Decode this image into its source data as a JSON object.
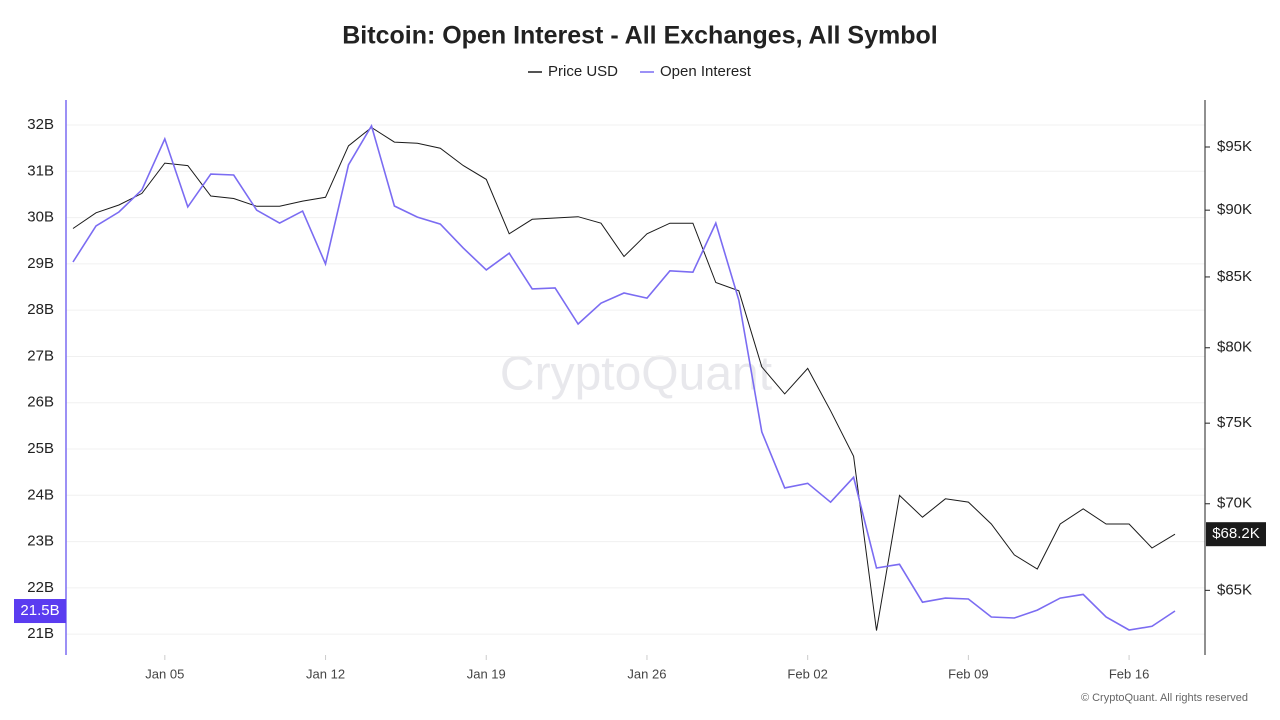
{
  "chart_data": {
    "type": "line",
    "title": "Bitcoin: Open Interest - All Exchanges, All Symbol",
    "watermark": "CryptoQuant",
    "footer": "© CryptoQuant. All rights reserved",
    "categories": [
      "Jan 01",
      "Jan 02",
      "Jan 03",
      "Jan 04",
      "Jan 05",
      "Jan 06",
      "Jan 07",
      "Jan 08",
      "Jan 09",
      "Jan 10",
      "Jan 11",
      "Jan 12",
      "Jan 13",
      "Jan 14",
      "Jan 15",
      "Jan 16",
      "Jan 17",
      "Jan 18",
      "Jan 19",
      "Jan 20",
      "Jan 21",
      "Jan 22",
      "Jan 23",
      "Jan 24",
      "Jan 25",
      "Jan 26",
      "Jan 27",
      "Jan 28",
      "Jan 29",
      "Jan 30",
      "Jan 31",
      "Feb 01",
      "Feb 02",
      "Feb 03",
      "Feb 04",
      "Feb 05",
      "Feb 06",
      "Feb 07",
      "Feb 08",
      "Feb 09",
      "Feb 10",
      "Feb 11",
      "Feb 12",
      "Feb 13",
      "Feb 14",
      "Feb 15",
      "Feb 16",
      "Feb 17",
      "Feb 18"
    ],
    "xticks": [
      "Jan 05",
      "Jan 12",
      "Jan 19",
      "Jan 26",
      "Feb 02",
      "Feb 09",
      "Feb 16"
    ],
    "series": [
      {
        "name": "Price USD",
        "color": "#1a1a1a",
        "axis": "y2",
        "values": [
          88.6,
          89.8,
          90.4,
          91.3,
          93.7,
          93.5,
          91.1,
          90.9,
          90.3,
          90.3,
          90.7,
          91.0,
          95.1,
          96.6,
          95.4,
          95.3,
          94.9,
          93.5,
          92.4,
          88.2,
          89.3,
          89.4,
          89.5,
          89.0,
          86.5,
          88.2,
          89.0,
          89.0,
          84.6,
          84.0,
          78.7,
          76.9,
          78.6,
          75.8,
          72.9,
          62.8,
          70.5,
          69.2,
          70.3,
          70.1,
          68.8,
          67.0,
          66.2,
          68.8,
          69.7,
          68.8,
          68.8,
          67.4,
          68.2
        ],
        "value_labels": [
          null,
          null,
          null,
          null,
          null,
          null,
          null,
          null,
          null,
          null,
          null,
          null,
          null,
          null,
          null,
          null,
          null,
          null,
          null,
          null,
          null,
          null,
          null,
          null,
          null,
          null,
          null,
          null,
          null,
          null,
          null,
          null,
          null,
          null,
          null,
          null,
          null,
          null,
          null,
          null,
          null,
          null,
          null,
          null,
          null,
          null,
          null,
          null,
          "$68.2K"
        ]
      },
      {
        "name": "Open Interest",
        "color": "#7b6cf2",
        "label_color": "#5a3cf0",
        "axis": "y",
        "values": [
          29.04,
          29.82,
          30.12,
          30.6,
          31.7,
          30.23,
          30.94,
          30.92,
          30.16,
          29.88,
          30.14,
          29.0,
          31.14,
          31.98,
          30.25,
          30.01,
          29.86,
          29.34,
          28.87,
          29.23,
          28.46,
          28.48,
          27.7,
          28.15,
          28.37,
          28.26,
          28.85,
          28.82,
          29.88,
          28.22,
          25.37,
          24.16,
          24.26,
          23.85,
          24.39,
          22.43,
          22.51,
          21.69,
          21.78,
          21.76,
          21.37,
          21.35,
          21.52,
          21.78,
          21.86,
          21.37,
          21.09,
          21.17,
          21.5
        ],
        "value_labels": [
          null,
          null,
          null,
          null,
          null,
          null,
          null,
          null,
          null,
          null,
          null,
          null,
          null,
          null,
          null,
          null,
          null,
          null,
          null,
          null,
          null,
          null,
          null,
          null,
          null,
          null,
          null,
          null,
          null,
          null,
          null,
          null,
          null,
          null,
          null,
          null,
          null,
          null,
          null,
          null,
          null,
          null,
          null,
          null,
          null,
          null,
          null,
          null,
          "21.5B"
        ]
      }
    ],
    "ylim": [
      20.55,
      32.54
    ],
    "yticks": [
      {
        "value": 21,
        "label": "21B"
      },
      {
        "value": 22,
        "label": "22B"
      },
      {
        "value": 23,
        "label": "23B"
      },
      {
        "value": 24,
        "label": "24B"
      },
      {
        "value": 25,
        "label": "25B"
      },
      {
        "value": 26,
        "label": "26B"
      },
      {
        "value": 27,
        "label": "27B"
      },
      {
        "value": 28,
        "label": "28B"
      },
      {
        "value": 29,
        "label": "29B"
      },
      {
        "value": 30,
        "label": "30B"
      },
      {
        "value": 31,
        "label": "31B"
      },
      {
        "value": 32,
        "label": "32B"
      }
    ],
    "y2lim": [
      61.5,
      98.9
    ],
    "y2ticks": [
      {
        "value": 65,
        "label": "$65K"
      },
      {
        "value": 70,
        "label": "$70K"
      },
      {
        "value": 75,
        "label": "$75K"
      },
      {
        "value": 80,
        "label": "$80K"
      },
      {
        "value": 85,
        "label": "$85K"
      },
      {
        "value": 90,
        "label": "$90K"
      },
      {
        "value": 95,
        "label": "$95K"
      }
    ],
    "y2log": true,
    "grid": true,
    "legend": "top"
  }
}
